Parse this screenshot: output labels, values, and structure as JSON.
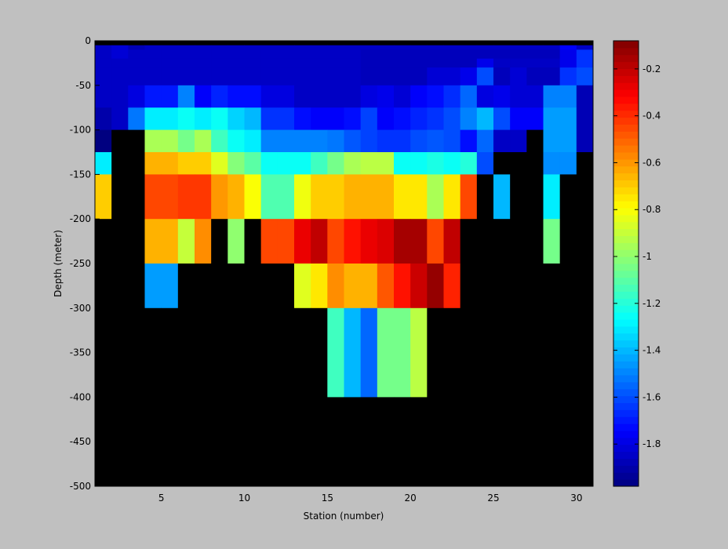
{
  "chart_data": {
    "type": "heatmap",
    "title": "",
    "xlabel": "Station (number)",
    "ylabel": "Depth (meter)",
    "xlim": [
      1,
      31
    ],
    "ylim": [
      -500,
      0
    ],
    "xticks": [
      5,
      10,
      15,
      20,
      25,
      30
    ],
    "yticks": [
      0,
      -50,
      -100,
      -150,
      -200,
      -250,
      -300,
      -350,
      -400,
      -450,
      -500
    ],
    "grid": false,
    "background_color": "#000000",
    "colormap": "jet",
    "colorbar": {
      "range": [
        -1.98,
        -0.08
      ],
      "ticks": [
        -0.2,
        -0.4,
        -0.6,
        -0.8,
        -1,
        -1.2,
        -1.4,
        -1.6,
        -1.8
      ],
      "tick_labels": [
        "-0.2",
        "-0.4",
        "-0.6",
        "-0.8",
        "-1",
        "-1.2",
        "-1.4",
        "-1.6",
        "-1.8"
      ]
    },
    "x_centers": [
      1.5,
      2.5,
      3.5,
      4.5,
      5.5,
      6.5,
      7.5,
      8.5,
      9.5,
      10.5,
      11.5,
      12.5,
      13.5,
      14.5,
      15.5,
      16.5,
      17.5,
      18.5,
      19.5,
      20.5,
      21.5,
      22.5,
      23.5,
      24.5,
      25.5,
      26.5,
      27.5,
      28.5,
      29.5,
      30.5
    ],
    "depth_rows": [
      {
        "depth_range": [
          -5,
          0
        ],
        "values": [
          null,
          null,
          null,
          null,
          null,
          null,
          null,
          null,
          null,
          null,
          null,
          null,
          null,
          null,
          null,
          null,
          null,
          null,
          null,
          null,
          null,
          null,
          null,
          null,
          null,
          null,
          null,
          null,
          null,
          null
        ]
      },
      {
        "depth_range": [
          -10,
          -5
        ],
        "values": [
          -1.85,
          -1.82,
          -1.88,
          -1.85,
          -1.85,
          -1.85,
          -1.85,
          -1.85,
          -1.85,
          -1.85,
          -1.85,
          -1.85,
          -1.85,
          -1.85,
          -1.85,
          -1.85,
          -1.85,
          -1.85,
          -1.85,
          -1.85,
          -1.85,
          -1.85,
          -1.85,
          -1.85,
          -1.85,
          -1.85,
          -1.85,
          -1.85,
          -1.75,
          -1.85
        ]
      },
      {
        "depth_range": [
          -20,
          -10
        ],
        "values": [
          -1.85,
          -1.82,
          -1.85,
          -1.85,
          -1.85,
          -1.85,
          -1.85,
          -1.85,
          -1.85,
          -1.85,
          -1.85,
          -1.85,
          -1.85,
          -1.85,
          -1.85,
          -1.85,
          -1.87,
          -1.87,
          -1.87,
          -1.87,
          -1.87,
          -1.87,
          -1.87,
          -1.87,
          -1.87,
          -1.87,
          -1.87,
          -1.87,
          -1.78,
          -1.65
        ]
      },
      {
        "depth_range": [
          -30,
          -20
        ],
        "values": [
          -1.85,
          -1.85,
          -1.85,
          -1.85,
          -1.85,
          -1.85,
          -1.85,
          -1.85,
          -1.85,
          -1.85,
          -1.85,
          -1.85,
          -1.85,
          -1.85,
          -1.85,
          -1.85,
          -1.87,
          -1.87,
          -1.87,
          -1.87,
          -1.87,
          -1.87,
          -1.87,
          -1.78,
          -1.85,
          -1.85,
          -1.85,
          -1.85,
          -1.78,
          -1.65
        ]
      },
      {
        "depth_range": [
          -50,
          -30
        ],
        "values": [
          -1.85,
          -1.85,
          -1.85,
          -1.85,
          -1.85,
          -1.85,
          -1.85,
          -1.85,
          -1.85,
          -1.85,
          -1.85,
          -1.85,
          -1.85,
          -1.85,
          -1.85,
          -1.85,
          -1.87,
          -1.87,
          -1.87,
          -1.87,
          -1.82,
          -1.82,
          -1.78,
          -1.6,
          -1.87,
          -1.82,
          -1.87,
          -1.87,
          -1.65,
          -1.6
        ]
      },
      {
        "depth_range": [
          -75,
          -50
        ],
        "values": [
          -1.85,
          -1.85,
          -1.8,
          -1.7,
          -1.7,
          -1.5,
          -1.75,
          -1.68,
          -1.72,
          -1.72,
          -1.8,
          -1.8,
          -1.85,
          -1.85,
          -1.85,
          -1.85,
          -1.8,
          -1.78,
          -1.82,
          -1.75,
          -1.72,
          -1.66,
          -1.55,
          -1.8,
          -1.78,
          -1.82,
          -1.82,
          -1.5,
          -1.5,
          -1.88
        ]
      },
      {
        "depth_range": [
          -100,
          -75
        ],
        "values": [
          -1.9,
          -1.85,
          -1.52,
          -1.3,
          -1.3,
          -1.25,
          -1.3,
          -1.25,
          -1.35,
          -1.4,
          -1.65,
          -1.65,
          -1.72,
          -1.75,
          -1.75,
          -1.72,
          -1.62,
          -1.75,
          -1.72,
          -1.68,
          -1.65,
          -1.6,
          -1.5,
          -1.4,
          -1.6,
          -1.75,
          -1.75,
          -1.45,
          -1.45,
          -1.88
        ]
      },
      {
        "depth_range": [
          -125,
          -100
        ],
        "values": [
          -1.98,
          null,
          null,
          -0.95,
          -0.95,
          -1.05,
          -0.95,
          -1.15,
          -1.25,
          -1.3,
          -1.5,
          -1.5,
          -1.5,
          -1.5,
          -1.52,
          -1.58,
          -1.62,
          -1.65,
          -1.65,
          -1.6,
          -1.58,
          -1.6,
          -1.72,
          -1.55,
          -1.85,
          -1.85,
          null,
          -1.45,
          -1.45,
          -1.88
        ]
      },
      {
        "depth_range": [
          -150,
          -125
        ],
        "values": [
          -1.3,
          null,
          null,
          -0.65,
          -0.65,
          -0.7,
          -0.7,
          -0.85,
          -1.02,
          -1.1,
          -1.25,
          -1.25,
          -1.25,
          -1.15,
          -1.05,
          -0.95,
          -0.92,
          -0.92,
          -1.25,
          -1.25,
          -1.22,
          -1.25,
          -1.2,
          -1.6,
          null,
          null,
          null,
          -1.48,
          -1.48,
          null
        ]
      },
      {
        "depth_range": [
          -200,
          -150
        ],
        "values": [
          -0.7,
          null,
          null,
          -0.45,
          -0.45,
          -0.42,
          -0.42,
          -0.6,
          -0.65,
          -0.8,
          -1.12,
          -1.12,
          -0.82,
          -0.7,
          -0.7,
          -0.65,
          -0.65,
          -0.65,
          -0.75,
          -0.75,
          -0.95,
          -0.75,
          -0.45,
          null,
          -1.4,
          null,
          null,
          -1.3,
          null,
          null
        ]
      },
      {
        "depth_range": [
          -250,
          -200
        ],
        "values": [
          null,
          null,
          null,
          -0.65,
          -0.65,
          -0.9,
          -0.58,
          null,
          -1.0,
          null,
          -0.45,
          -0.45,
          -0.28,
          -0.2,
          -0.45,
          -0.35,
          -0.28,
          -0.25,
          -0.15,
          -0.15,
          -0.45,
          -0.2,
          null,
          null,
          null,
          null,
          null,
          -1.05,
          null,
          null
        ]
      },
      {
        "depth_range": [
          -300,
          -250
        ],
        "values": [
          null,
          null,
          null,
          -1.45,
          -1.45,
          null,
          null,
          null,
          null,
          null,
          null,
          null,
          -0.85,
          -0.75,
          -0.58,
          -0.65,
          -0.65,
          -0.48,
          -0.35,
          -0.22,
          -0.12,
          -0.38,
          null,
          null,
          null,
          null,
          null,
          null,
          null,
          null
        ]
      },
      {
        "depth_range": [
          -400,
          -300
        ],
        "values": [
          null,
          null,
          null,
          null,
          null,
          null,
          null,
          null,
          null,
          null,
          null,
          null,
          null,
          null,
          -1.15,
          -1.4,
          -1.55,
          -1.05,
          -1.05,
          -0.92,
          null,
          null,
          null,
          null,
          null,
          null,
          null,
          null,
          null,
          null
        ]
      },
      {
        "depth_range": [
          -500,
          -400
        ],
        "values": [
          null,
          null,
          null,
          null,
          null,
          null,
          null,
          null,
          null,
          null,
          null,
          null,
          null,
          null,
          null,
          null,
          null,
          null,
          null,
          null,
          null,
          null,
          null,
          null,
          null,
          null,
          null,
          null,
          null,
          null
        ]
      }
    ]
  }
}
